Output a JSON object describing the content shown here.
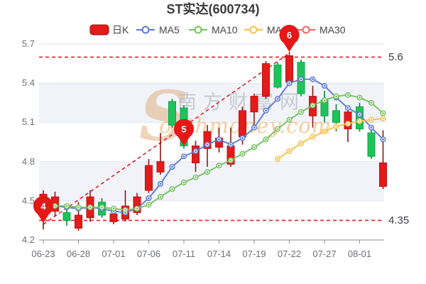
{
  "chart_data": {
    "type": "candlestick",
    "title": "ST实达(600734)",
    "legend": {
      "items": [
        {
          "label": "日K",
          "color": "#e31b1b",
          "marker": "rect"
        },
        {
          "label": "MA5",
          "color": "#5b7ad0",
          "marker": "line-circle"
        },
        {
          "label": "MA10",
          "color": "#74c25e",
          "marker": "line-circle"
        },
        {
          "label": "MA20",
          "color": "#f5c14a",
          "marker": "line-circle"
        },
        {
          "label": "MA30",
          "color": "#ee6666",
          "marker": "line-circle"
        }
      ]
    },
    "ylim": [
      4.2,
      5.7
    ],
    "ytick_labels": [
      "5.7",
      "5.4",
      "5.1",
      "4.8",
      "4.5",
      "4.2"
    ],
    "categories": [
      "06-23",
      "06-28",
      "07-01",
      "07-06",
      "07-11",
      "07-14",
      "07-19",
      "07-22",
      "07-27",
      "08-01"
    ],
    "candles": [
      [
        4.4,
        4.58,
        4.28,
        4.55
      ],
      [
        4.42,
        4.57,
        4.38,
        4.53
      ],
      [
        4.41,
        4.43,
        4.31,
        4.35
      ],
      [
        4.29,
        4.49,
        4.27,
        4.39
      ],
      [
        4.37,
        4.58,
        4.34,
        4.53
      ],
      [
        4.49,
        4.52,
        4.37,
        4.39
      ],
      [
        4.34,
        4.42,
        4.32,
        4.4
      ],
      [
        4.36,
        4.58,
        4.34,
        4.46
      ],
      [
        4.41,
        4.56,
        4.39,
        4.53
      ],
      [
        4.58,
        4.82,
        4.56,
        4.77
      ],
      [
        4.72,
        5.02,
        4.7,
        4.8
      ],
      [
        5.26,
        5.28,
        5.06,
        5.08
      ],
      [
        5.21,
        5.23,
        4.9,
        4.92
      ],
      [
        4.79,
        4.96,
        4.72,
        4.92
      ],
      [
        4.9,
        5.08,
        4.76,
        5.03
      ],
      [
        4.91,
        5.06,
        4.87,
        4.98
      ],
      [
        4.78,
        5.06,
        4.76,
        4.92
      ],
      [
        4.99,
        5.22,
        4.93,
        5.19
      ],
      [
        5.18,
        5.32,
        5.05,
        5.3
      ],
      [
        5.3,
        5.57,
        5.28,
        5.55
      ],
      [
        5.54,
        5.56,
        5.36,
        5.37
      ],
      [
        5.41,
        5.64,
        5.38,
        5.61
      ],
      [
        5.56,
        5.58,
        5.3,
        5.32
      ],
      [
        5.15,
        5.38,
        5.06,
        5.3
      ],
      [
        5.27,
        5.34,
        5.1,
        5.15
      ],
      [
        5.19,
        5.24,
        5.03,
        5.1
      ],
      [
        5.05,
        5.2,
        4.95,
        5.18
      ],
      [
        5.22,
        5.25,
        5.03,
        5.05
      ],
      [
        5.02,
        5.08,
        4.82,
        4.84
      ],
      [
        4.61,
        5.04,
        4.59,
        4.79
      ]
    ],
    "ma5": [
      4.45,
      4.46,
      4.45,
      4.44,
      4.45,
      4.44,
      4.42,
      4.41,
      4.44,
      4.52,
      4.63,
      4.76,
      4.84,
      4.88,
      4.93,
      4.97,
      4.93,
      4.98,
      5.06,
      5.19,
      5.28,
      5.4,
      5.43,
      5.43,
      5.38,
      5.29,
      5.21,
      5.16,
      5.06,
      4.97
    ],
    "ma10": [
      4.46,
      4.46,
      4.46,
      4.45,
      4.45,
      4.45,
      4.44,
      4.43,
      4.44,
      4.47,
      4.53,
      4.59,
      4.64,
      4.68,
      4.72,
      4.77,
      4.81,
      4.86,
      4.91,
      4.97,
      5.05,
      5.12,
      5.18,
      5.23,
      5.27,
      5.3,
      5.31,
      5.29,
      5.25,
      5.17
    ],
    "ma20": [
      null,
      null,
      null,
      null,
      null,
      null,
      null,
      null,
      null,
      null,
      null,
      null,
      null,
      null,
      null,
      null,
      null,
      null,
      null,
      null,
      4.82,
      4.88,
      4.94,
      4.99,
      5.03,
      5.07,
      5.09,
      5.11,
      5.12,
      5.13
    ],
    "ma30": [],
    "ref_lines": [
      {
        "label": "5.6",
        "value": 5.6
      },
      {
        "label": "4.35",
        "value": 4.35
      }
    ],
    "trend_line": {
      "from": [
        0,
        4.32
      ],
      "to": [
        21,
        5.63
      ]
    },
    "markers": [
      {
        "label": "4",
        "index": 0,
        "value": 4.33
      },
      {
        "label": "5",
        "index": 12,
        "value": 4.92
      },
      {
        "label": "6",
        "index": 21,
        "value": 5.64
      }
    ],
    "watermark": {
      "swoosh": "S",
      "cn": "南方财富网",
      "en": "outhmoney.com"
    },
    "colors": {
      "up": "#e31b1b",
      "up_border": "#c11010",
      "up_wick": "#8f1616",
      "down": "#1ec35a",
      "down_border": "#10a648",
      "down_wick": "#0c8038",
      "ma5": "#5b7ad0",
      "ma10": "#74c25e",
      "ma20": "#f5c14a",
      "ma30": "#ee6666",
      "ref": "#e02222",
      "balloon": "#e61717",
      "band": "#f1f3f9",
      "grid": "#e2e6f0",
      "axis": "#878c96",
      "tick_text": "#6e7079",
      "ref_text": "#3c3e44",
      "title_text": "#3a3a3a",
      "legend_text": "#454545"
    }
  }
}
